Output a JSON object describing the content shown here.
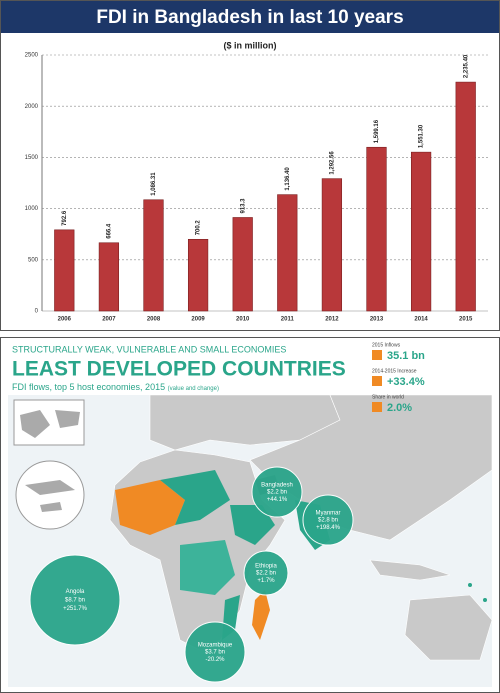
{
  "chart_data": {
    "type": "bar",
    "title": "FDI in Bangladesh in last 10 years",
    "subtitle": "($ in million)",
    "categories": [
      "2006",
      "2007",
      "2008",
      "2009",
      "2010",
      "2011",
      "2012",
      "2013",
      "2014",
      "2015"
    ],
    "values": [
      792.6,
      666.4,
      1086.31,
      700.2,
      913.3,
      1136.4,
      1292.56,
      1599.16,
      1551.3,
      2235.4
    ],
    "value_labels": [
      "792.6",
      "666.4",
      "1,086.31",
      "700.2",
      "913.3",
      "1,136.40",
      "1,292.56",
      "1,599.16",
      "1,551.30",
      "2,235.40"
    ],
    "color": "#b8383a",
    "ylim": [
      0,
      2500
    ],
    "yticks": [
      0,
      500,
      1000,
      1500,
      2000,
      2500
    ],
    "grid": true
  },
  "infographic": {
    "kicker": "STRUCTURALLY WEAK, VULNERABLE AND SMALL ECONOMIES",
    "headline": "LEAST DEVELOPED COUNTRIES",
    "caption": "FDI flows, top 5 host economies, 2015",
    "caption_note": "(value and change)",
    "stats": [
      {
        "label": "2015 Inflows",
        "value": "35.1 bn"
      },
      {
        "label": "2014-2015 Increase",
        "value": "+33.4%"
      },
      {
        "label": "Share in world",
        "value": "2.0%"
      }
    ],
    "economies": [
      {
        "name": "Angola",
        "value": "$8.7 bn",
        "change": "+251.7%"
      },
      {
        "name": "Mozambique",
        "value": "$3.7 bn",
        "change": "-20.2%"
      },
      {
        "name": "Ethiopia",
        "value": "$2.2 bn",
        "change": "+1.7%"
      },
      {
        "name": "Bangladesh",
        "value": "$2.2 bn",
        "change": "+44.1%"
      },
      {
        "name": "Myanmar",
        "value": "$2.8 bn",
        "change": "+198.4%"
      }
    ]
  }
}
